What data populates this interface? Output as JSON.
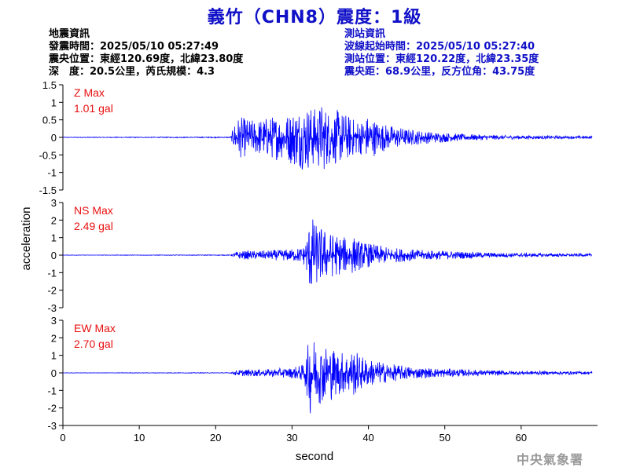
{
  "title": "義竹（CHN8）震度：1級",
  "event_info": {
    "heading": "地震資訊",
    "origin_time": "發震時間：2025/05/10 05:27:49",
    "epicenter": "震央位置：東經120.69度，北緯23.80度",
    "depth_magnitude": "深　度：20.5公里，芮氏規模：4.3"
  },
  "station_info": {
    "heading": "測站資訊",
    "wave_onset": "波線起始時間：2025/05/10 05:27:40",
    "location": "測站位置：東經120.22度，北緯23.35度",
    "distance": "震央距：68.9公里，反方位角：43.75度"
  },
  "logo_text": "中央氣象署",
  "colors": {
    "trace": "#0000ff",
    "label": "#e81010",
    "title": "#1010c8",
    "station": "#1010c8"
  },
  "chart_data": {
    "type": "line",
    "xlabel": "second",
    "ylabel": "acceleration",
    "xlim": [
      0,
      70
    ],
    "xticks": [
      0,
      10,
      20,
      30,
      40,
      50,
      60
    ],
    "grid": false,
    "panels": [
      {
        "name": "Z",
        "label": "Z Max",
        "max_text": "1.01 gal",
        "ylim": [
          -1.5,
          1.5
        ],
        "yticks": [
          -1.5,
          -1,
          -0.5,
          0,
          0.5,
          1,
          1.5
        ],
        "ytick_labels": [
          "-1.5",
          "-1",
          "-0.5",
          "0",
          "0.5",
          "1",
          "1.5"
        ],
        "envelope": {
          "t": [
            0,
            22,
            22.6,
            23,
            24,
            25,
            26,
            27,
            28,
            29,
            30,
            31,
            32,
            33,
            34,
            35,
            36,
            37,
            38,
            39,
            40,
            41,
            42,
            43,
            44,
            45,
            46,
            47,
            48,
            50,
            52,
            55,
            58,
            62,
            66,
            69
          ],
          "amp": [
            0.01,
            0.015,
            0.55,
            0.6,
            0.55,
            0.5,
            0.55,
            0.6,
            0.65,
            0.6,
            0.8,
            0.9,
            0.95,
            0.85,
            1.01,
            0.75,
            0.8,
            0.7,
            0.55,
            0.5,
            0.65,
            0.5,
            0.4,
            0.35,
            0.3,
            0.25,
            0.22,
            0.2,
            0.17,
            0.14,
            0.1,
            0.08,
            0.06,
            0.05,
            0.04,
            0.04
          ]
        }
      },
      {
        "name": "NS",
        "label": "NS Max",
        "max_text": "2.49 gal",
        "ylim": [
          -3,
          3
        ],
        "yticks": [
          -3,
          -2,
          -1,
          0,
          1,
          2,
          3
        ],
        "ytick_labels": [
          "-3",
          "-2",
          "-1",
          "0",
          "1",
          "2",
          "3"
        ],
        "envelope": {
          "t": [
            0,
            22,
            22.6,
            24,
            26,
            28,
            30,
            31.5,
            32,
            32.5,
            33,
            34,
            35,
            36,
            37,
            38,
            39,
            40,
            41,
            42,
            43,
            45,
            47,
            50,
            53,
            56,
            60,
            64,
            69
          ],
          "amp": [
            0.01,
            0.02,
            0.2,
            0.25,
            0.25,
            0.3,
            0.35,
            0.5,
            1.3,
            2.49,
            1.8,
            1.6,
            1.3,
            1.2,
            1.0,
            1.1,
            0.8,
            0.7,
            0.6,
            0.5,
            0.45,
            0.35,
            0.3,
            0.25,
            0.2,
            0.15,
            0.12,
            0.1,
            0.08
          ]
        }
      },
      {
        "name": "EW",
        "label": "EW Max",
        "max_text": "2.70 gal",
        "ylim": [
          -3,
          3
        ],
        "yticks": [
          -3,
          -2,
          -1,
          0,
          1,
          2,
          3
        ],
        "ytick_labels": [
          "-3",
          "-2",
          "-1",
          "0",
          "1",
          "2",
          "3"
        ],
        "envelope": {
          "t": [
            0,
            22,
            22.6,
            24,
            26,
            28,
            30,
            31.5,
            32,
            32.5,
            33,
            34,
            35,
            36,
            37,
            38,
            39,
            40,
            41,
            42,
            43,
            45,
            47,
            50,
            53,
            56,
            60,
            64,
            69
          ],
          "amp": [
            0.01,
            0.02,
            0.15,
            0.2,
            0.2,
            0.25,
            0.3,
            0.5,
            1.4,
            2.7,
            1.9,
            1.7,
            1.6,
            1.3,
            1.2,
            1.4,
            1.0,
            0.8,
            0.7,
            0.6,
            0.5,
            0.4,
            0.3,
            0.25,
            0.2,
            0.15,
            0.12,
            0.1,
            0.08
          ]
        }
      }
    ]
  }
}
